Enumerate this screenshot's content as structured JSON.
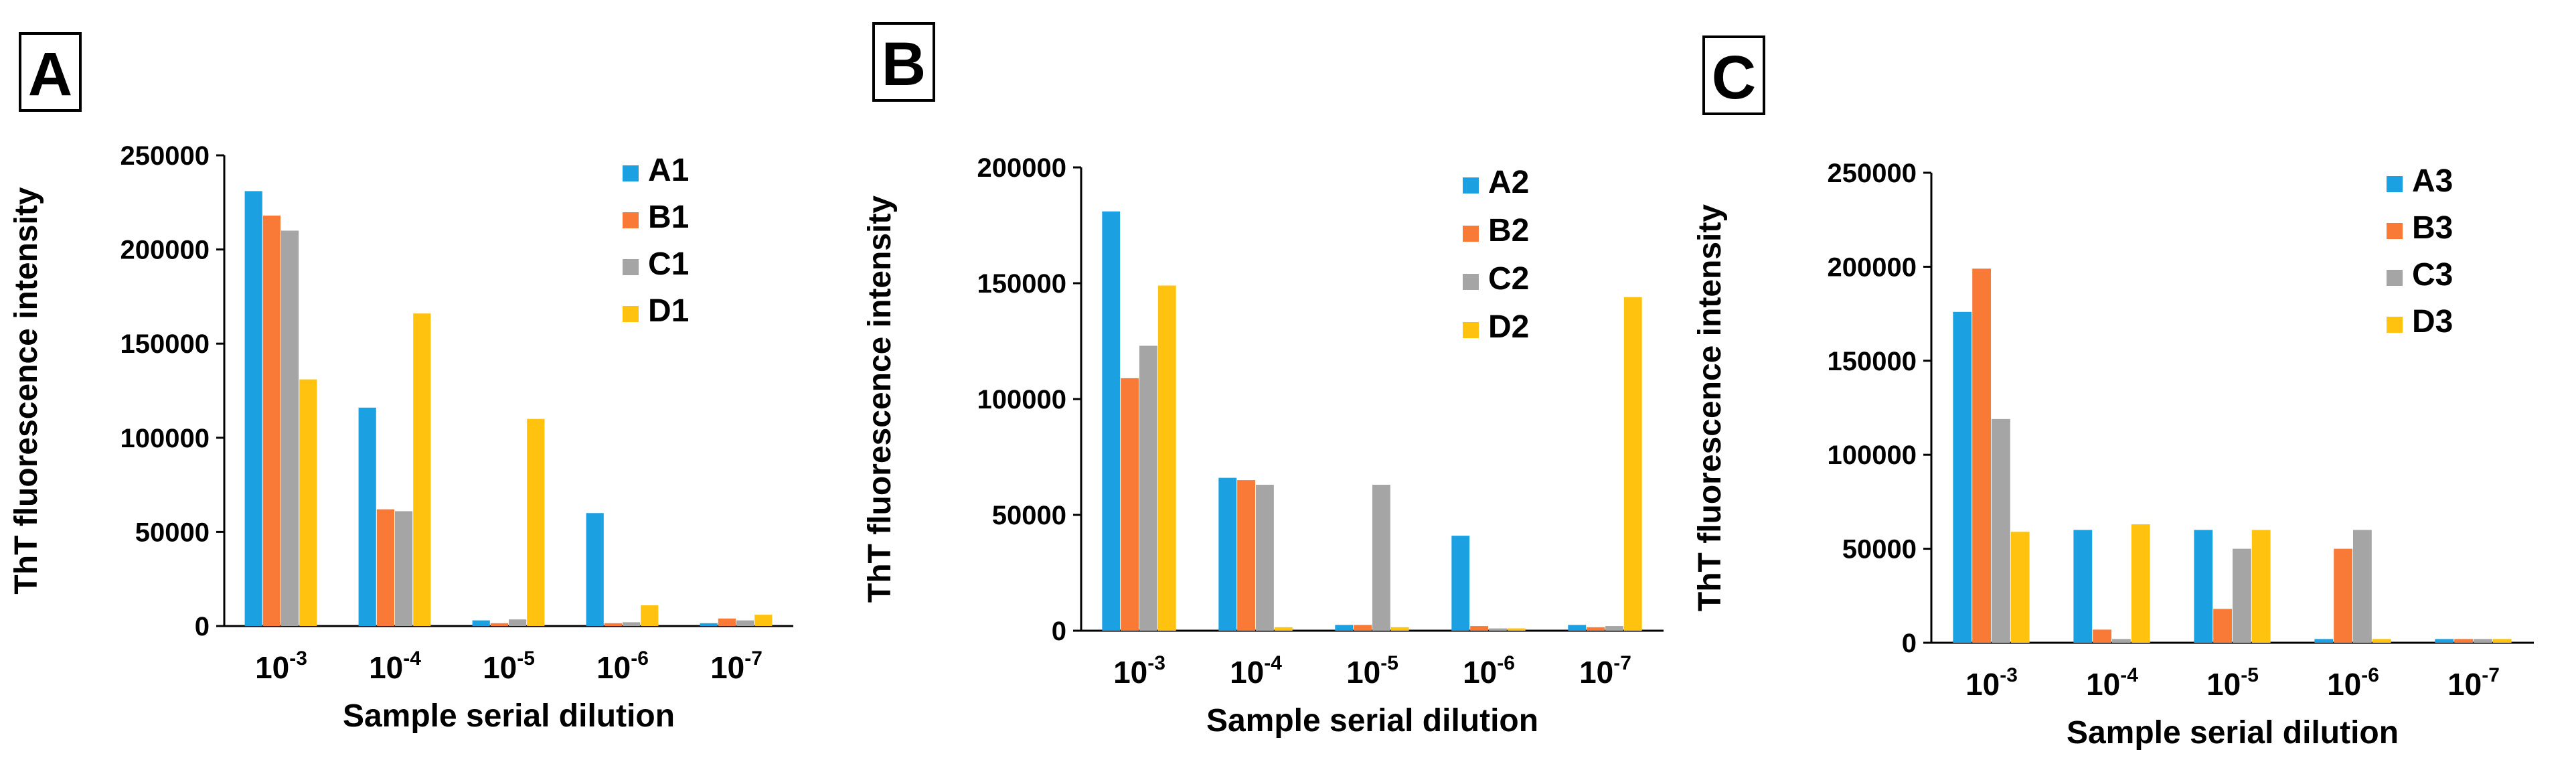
{
  "figure": {
    "series_colors": [
      "#1ba1e2",
      "#f97a36",
      "#a5a5a5",
      "#ffc20e"
    ]
  },
  "chart_data": [
    {
      "panel_label": "A",
      "type": "bar",
      "title": "",
      "xlabel": "Sample serial dilution",
      "ylabel": "ThT fluorescence intensity",
      "ylim": [
        0,
        250000
      ],
      "yticks": [
        0,
        50000,
        100000,
        150000,
        200000,
        250000
      ],
      "ytick_labels": [
        "0",
        "50000",
        "100000",
        "150000",
        "200000",
        "250000"
      ],
      "categories": [
        {
          "base": "10",
          "exp": "-3"
        },
        {
          "base": "10",
          "exp": "-4"
        },
        {
          "base": "10",
          "exp": "-5"
        },
        {
          "base": "10",
          "exp": "-6"
        },
        {
          "base": "10",
          "exp": "-7"
        }
      ],
      "legend_position": "top-right",
      "series": [
        {
          "name": "A1",
          "color": "#1ba1e2",
          "values": [
            231000,
            116000,
            3000,
            60000,
            1500
          ]
        },
        {
          "name": "B1",
          "color": "#f97a36",
          "values": [
            218000,
            62000,
            1500,
            1500,
            4000
          ]
        },
        {
          "name": "C1",
          "color": "#a5a5a5",
          "values": [
            210000,
            61000,
            3500,
            2000,
            3000
          ]
        },
        {
          "name": "D1",
          "color": "#ffc20e",
          "values": [
            131000,
            166000,
            110000,
            11000,
            6000
          ]
        }
      ]
    },
    {
      "panel_label": "B",
      "type": "bar",
      "title": "",
      "xlabel": "Sample serial dilution",
      "ylabel": "ThT fluorescence intensity",
      "ylim": [
        0,
        200000
      ],
      "yticks": [
        0,
        50000,
        100000,
        150000,
        200000
      ],
      "ytick_labels": [
        "0",
        "50000",
        "100000",
        "150000",
        "200000"
      ],
      "categories": [
        {
          "base": "10",
          "exp": "-3"
        },
        {
          "base": "10",
          "exp": "-4"
        },
        {
          "base": "10",
          "exp": "-5"
        },
        {
          "base": "10",
          "exp": "-6"
        },
        {
          "base": "10",
          "exp": "-7"
        }
      ],
      "legend_position": "top-right",
      "series": [
        {
          "name": "A2",
          "color": "#1ba1e2",
          "values": [
            181000,
            66000,
            2500,
            41000,
            2500
          ]
        },
        {
          "name": "B2",
          "color": "#f97a36",
          "values": [
            109000,
            65000,
            2500,
            2000,
            1500
          ]
        },
        {
          "name": "C2",
          "color": "#a5a5a5",
          "values": [
            123000,
            63000,
            63000,
            1000,
            2000
          ]
        },
        {
          "name": "D2",
          "color": "#ffc20e",
          "values": [
            149000,
            1500,
            1500,
            1000,
            144000
          ]
        }
      ]
    },
    {
      "panel_label": "C",
      "type": "bar",
      "title": "",
      "xlabel": "Sample serial dilution",
      "ylabel": "ThT fluorescence intensity",
      "ylim": [
        0,
        250000
      ],
      "yticks": [
        0,
        50000,
        100000,
        150000,
        200000,
        250000
      ],
      "ytick_labels": [
        "0",
        "50000",
        "100000",
        "150000",
        "200000",
        "250000"
      ],
      "categories": [
        {
          "base": "10",
          "exp": "-3"
        },
        {
          "base": "10",
          "exp": "-4"
        },
        {
          "base": "10",
          "exp": "-5"
        },
        {
          "base": "10",
          "exp": "-6"
        },
        {
          "base": "10",
          "exp": "-7"
        }
      ],
      "legend_position": "top-right",
      "series": [
        {
          "name": "A3",
          "color": "#1ba1e2",
          "values": [
            176000,
            60000,
            60000,
            2000,
            2000
          ]
        },
        {
          "name": "B3",
          "color": "#f97a36",
          "values": [
            199000,
            7000,
            18000,
            50000,
            2000
          ]
        },
        {
          "name": "C3",
          "color": "#a5a5a5",
          "values": [
            119000,
            2000,
            50000,
            60000,
            2000
          ]
        },
        {
          "name": "D3",
          "color": "#ffc20e",
          "values": [
            59000,
            63000,
            60000,
            2000,
            2000
          ]
        }
      ]
    }
  ]
}
